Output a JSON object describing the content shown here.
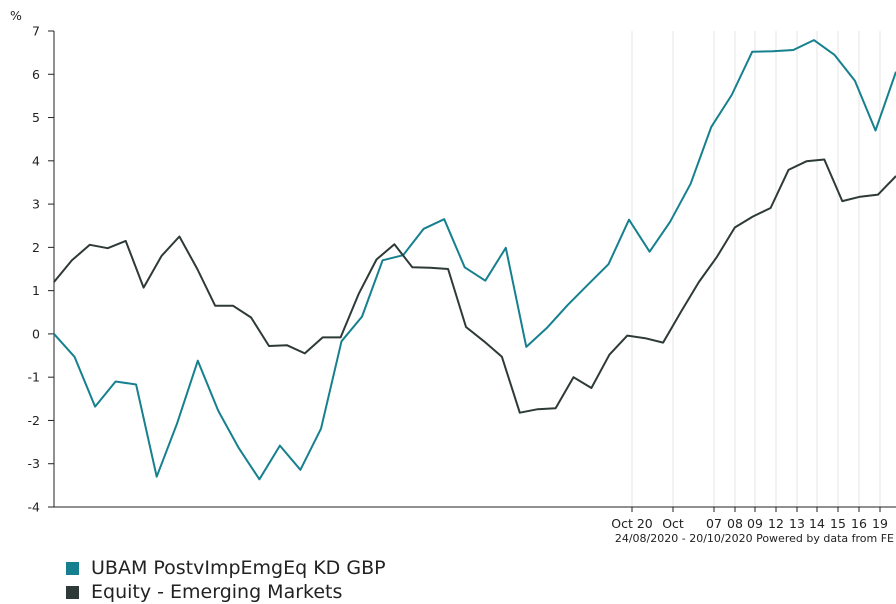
{
  "chart_data": {
    "type": "line",
    "ylabel": "%",
    "ylim": [
      -4,
      7
    ],
    "yticks": [
      "7",
      "6",
      "5",
      "4",
      "3",
      "2",
      "1",
      "0",
      "-1",
      "-2",
      "-3",
      "-4"
    ],
    "xticks": [
      "Oct 20",
      "Oct",
      "07",
      "08",
      "09",
      "12",
      "13",
      "14",
      "15",
      "16",
      "19"
    ],
    "caption": "24/08/2020 - 20/10/2020 Powered by data from FE",
    "grid": true,
    "legend_position": "bottom-left",
    "series": [
      {
        "name": "UBAM PostvImpEmgEq KD GBP",
        "color": "#16808e",
        "values": [
          0.0,
          -0.53,
          -1.68,
          -1.1,
          -1.17,
          -3.3,
          -2.06,
          -0.62,
          -1.78,
          -2.64,
          -3.36,
          -2.58,
          -3.14,
          -2.19,
          -0.17,
          0.4,
          1.7,
          1.82,
          2.43,
          2.65,
          1.54,
          1.23,
          1.99,
          -0.3,
          0.14,
          0.66,
          1.14,
          1.61,
          2.64,
          1.9,
          2.59,
          3.47,
          4.78,
          5.52,
          6.52,
          6.53,
          6.56,
          6.79,
          6.45,
          5.85,
          4.7,
          6.06
        ]
      },
      {
        "name": "Equity - Emerging Markets",
        "color": "#2e3a38",
        "values": [
          1.2,
          1.7,
          2.06,
          1.98,
          2.15,
          1.07,
          1.8,
          2.25,
          1.5,
          0.65,
          0.65,
          0.38,
          -0.28,
          -0.26,
          -0.45,
          -0.08,
          -0.08,
          0.92,
          1.72,
          2.07,
          1.54,
          1.53,
          1.5,
          0.16,
          -0.17,
          -0.53,
          -1.82,
          -1.74,
          -1.72,
          -1.0,
          -1.25,
          -0.48,
          -0.04,
          -0.1,
          -0.2,
          0.51,
          1.2,
          1.78,
          2.46,
          2.71,
          2.91,
          3.79,
          3.99,
          4.03,
          3.07,
          3.17,
          3.22,
          3.65
        ]
      }
    ]
  }
}
